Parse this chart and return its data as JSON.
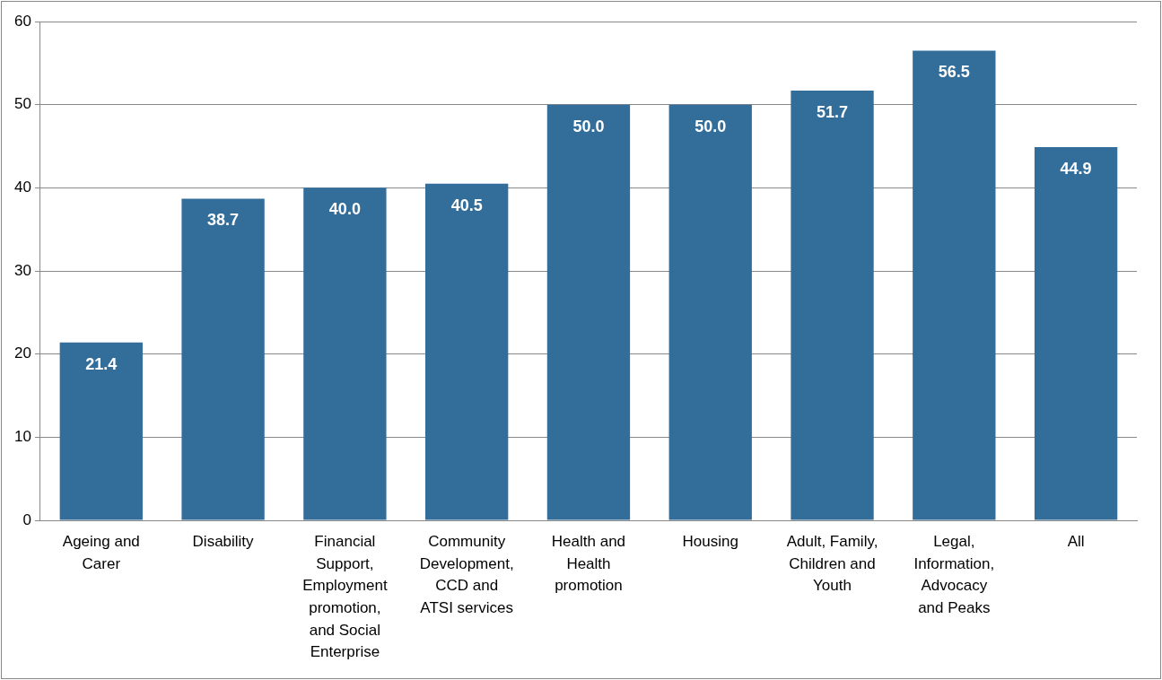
{
  "chart_data": {
    "type": "bar",
    "categories": [
      "Ageing and Carer",
      "Disability",
      "Financial Support, Employment promotion, and Social Enterprise",
      "Community Development, CCD and ATSI services",
      "Health and Health promotion",
      "Housing",
      "Adult, Family, Children and Youth",
      "Legal, Information, Advocacy and Peaks",
      "All"
    ],
    "values": [
      21.4,
      38.7,
      40.0,
      40.5,
      50.0,
      50.0,
      51.7,
      56.5,
      44.9
    ],
    "color": "#336e9b",
    "ylim": [
      0,
      60
    ],
    "yticks": [
      0,
      10,
      20,
      30,
      40,
      50,
      60
    ],
    "value_labels": [
      "21.4",
      "38.7",
      "40.0",
      "40.5",
      "50.0",
      "50.0",
      "51.7",
      "56.5",
      "44.9"
    ],
    "grid": "y"
  }
}
